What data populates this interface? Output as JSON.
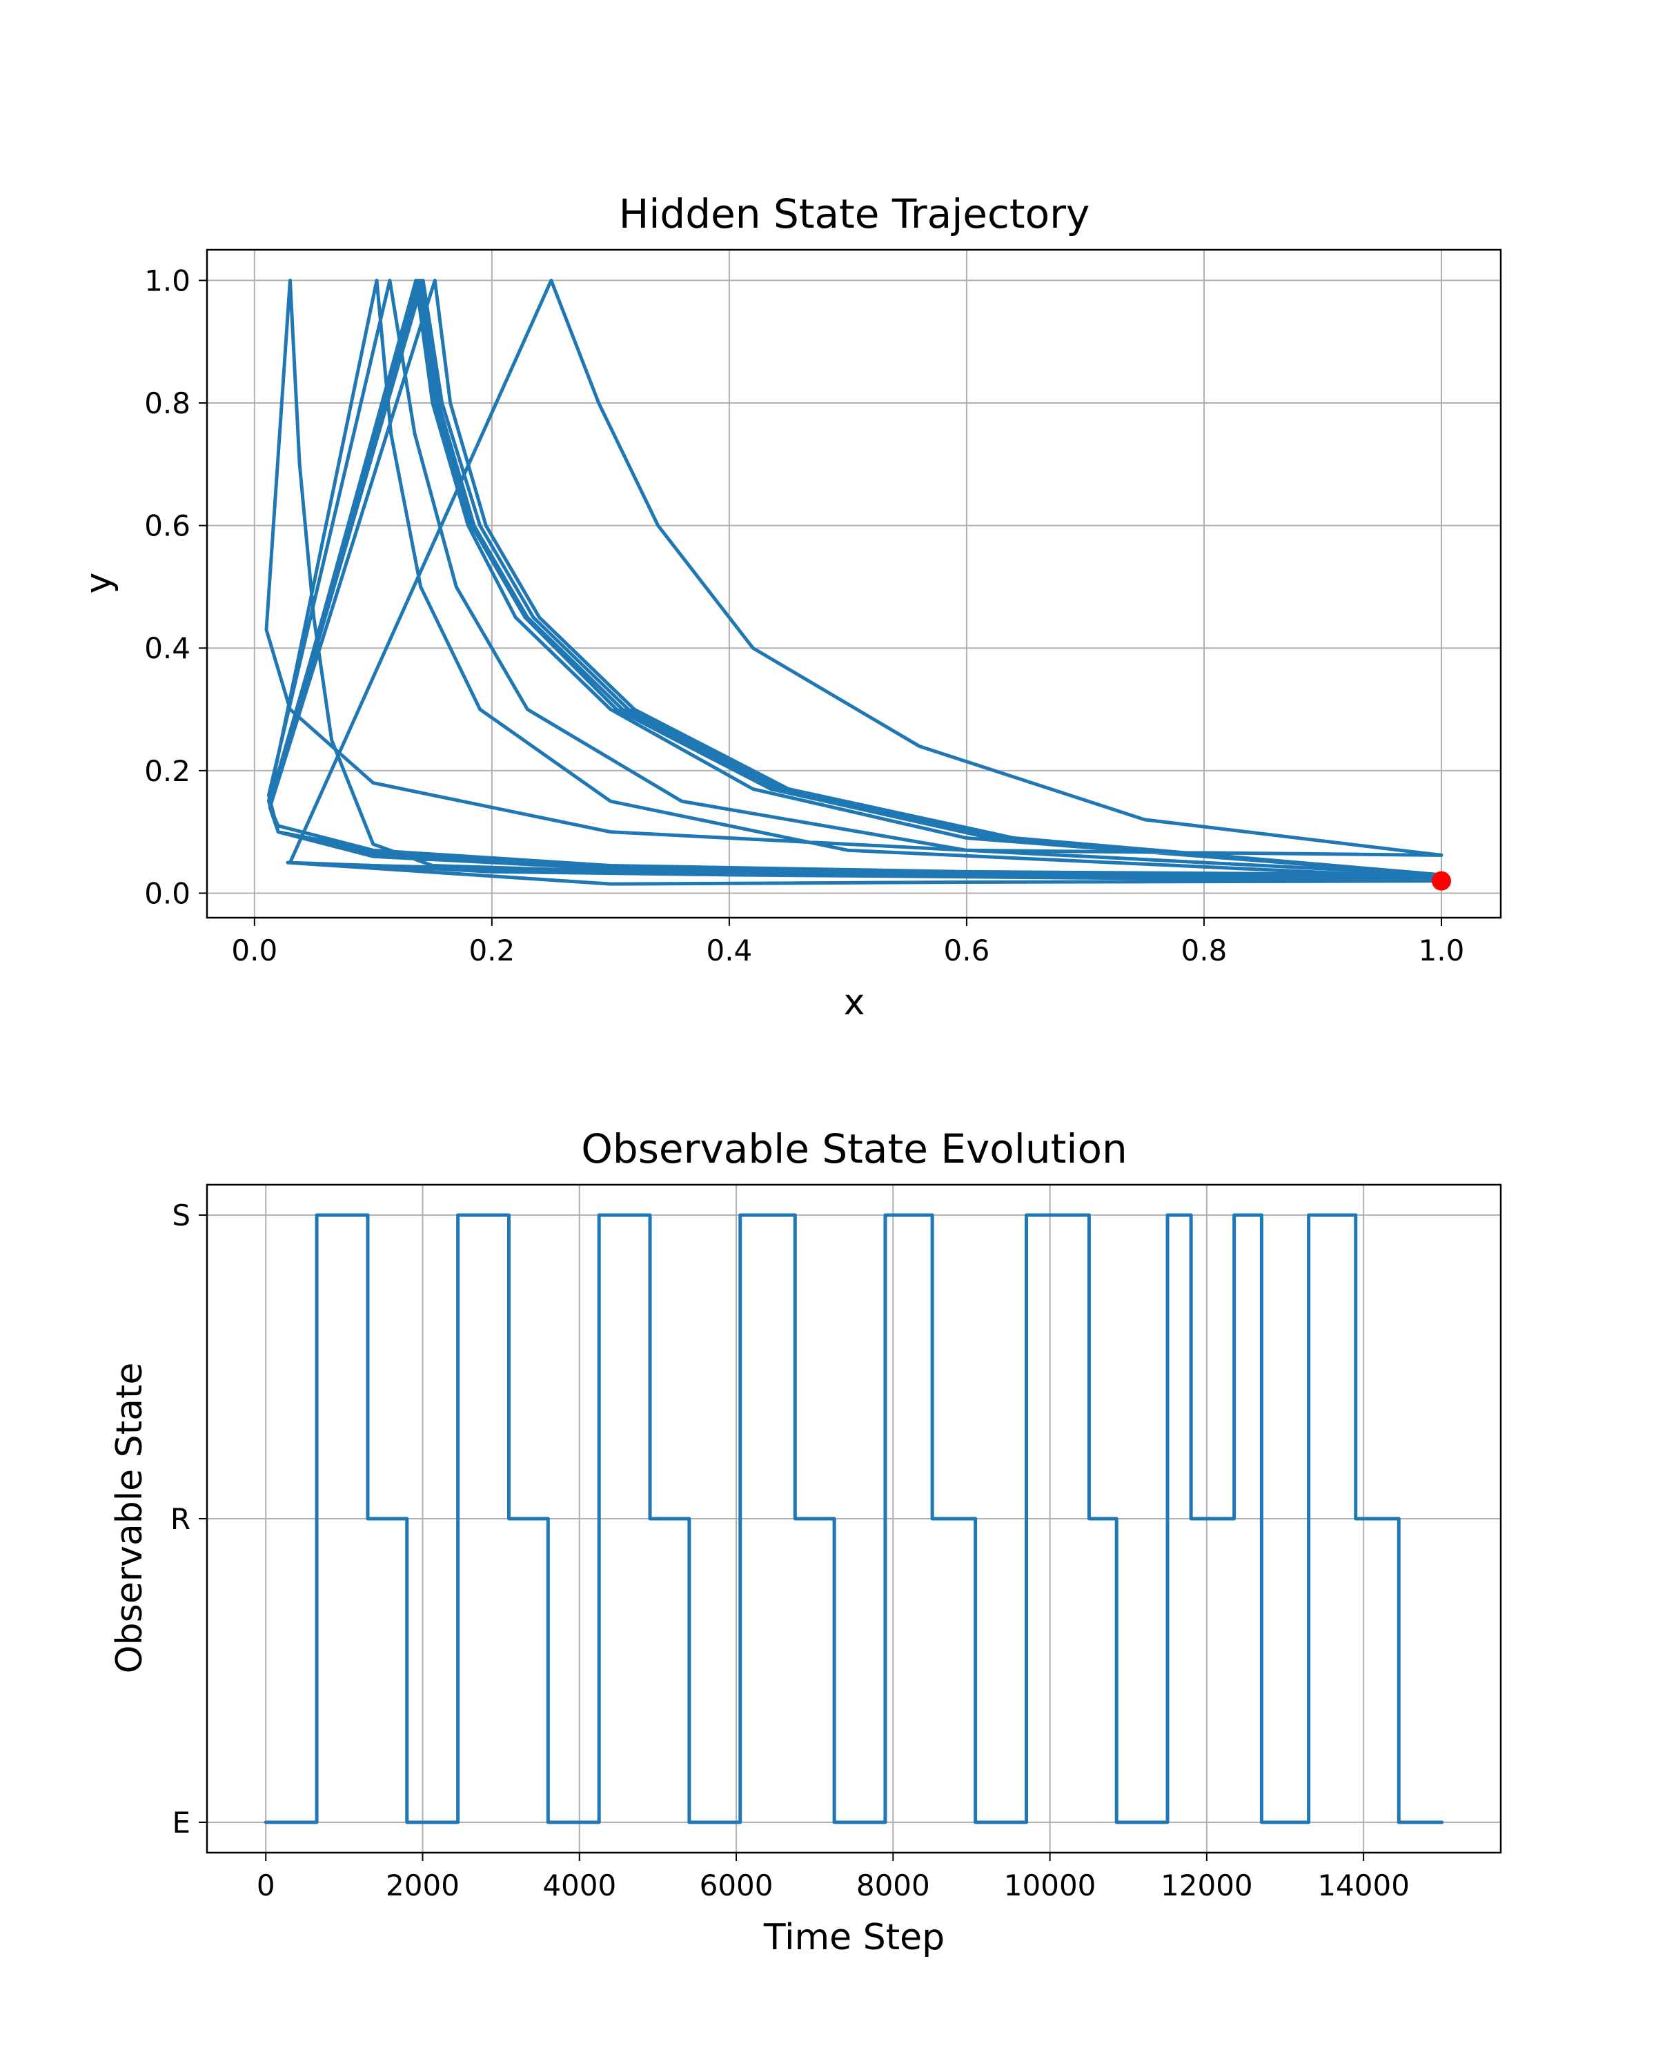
{
  "colors": {
    "series": "#1f77b4",
    "marker": "#ff0000",
    "grid": "#b0b0b0"
  },
  "chart_data": [
    {
      "type": "line",
      "title": "Hidden State Trajectory",
      "xlabel": "x",
      "ylabel": "y",
      "xlim": [
        -0.04,
        1.05
      ],
      "ylim": [
        -0.04,
        1.05
      ],
      "xticks": [
        0.0,
        0.2,
        0.4,
        0.6,
        0.8,
        1.0
      ],
      "xtick_labels": [
        "0.0",
        "0.2",
        "0.4",
        "0.6",
        "0.8",
        "1.0"
      ],
      "yticks": [
        0.0,
        0.2,
        0.4,
        0.6,
        0.8,
        1.0
      ],
      "ytick_labels": [
        "0.0",
        "0.2",
        "0.4",
        "0.6",
        "0.8",
        "1.0"
      ],
      "grid": true,
      "series": [
        {
          "points": [
            [
              1.0,
              0.02
            ],
            [
              0.7,
              0.025
            ],
            [
              0.4,
              0.03
            ],
            [
              0.2,
              0.035
            ],
            [
              0.1,
              0.045
            ],
            [
              0.03,
              0.05
            ],
            [
              0.25,
              1.0
            ],
            [
              0.29,
              0.8
            ],
            [
              0.34,
              0.6
            ],
            [
              0.42,
              0.4
            ],
            [
              0.56,
              0.24
            ],
            [
              0.75,
              0.12
            ],
            [
              1.0,
              0.062
            ],
            [
              0.6,
              0.07
            ],
            [
              0.3,
              0.1
            ],
            [
              0.1,
              0.18
            ],
            [
              0.03,
              0.3
            ],
            [
              0.01,
              0.43
            ],
            [
              0.03,
              1.0
            ],
            [
              0.038,
              0.7
            ],
            [
              0.05,
              0.45
            ],
            [
              0.065,
              0.25
            ],
            [
              0.1,
              0.08
            ],
            [
              0.15,
              0.045
            ],
            [
              0.4,
              0.03
            ],
            [
              0.7,
              0.025
            ],
            [
              1.0,
              0.02
            ],
            [
              0.6,
              0.03
            ],
            [
              0.3,
              0.04
            ],
            [
              0.1,
              0.06
            ],
            [
              0.02,
              0.1
            ],
            [
              0.012,
              0.15
            ],
            [
              0.103,
              1.0
            ],
            [
              0.115,
              0.75
            ],
            [
              0.14,
              0.5
            ],
            [
              0.19,
              0.3
            ],
            [
              0.3,
              0.15
            ],
            [
              0.5,
              0.07
            ],
            [
              1.0,
              0.025
            ],
            [
              0.6,
              0.03
            ],
            [
              0.3,
              0.045
            ],
            [
              0.1,
              0.07
            ],
            [
              0.02,
              0.1
            ],
            [
              0.012,
              0.16
            ],
            [
              0.114,
              1.0
            ],
            [
              0.135,
              0.75
            ],
            [
              0.17,
              0.5
            ],
            [
              0.23,
              0.3
            ],
            [
              0.36,
              0.15
            ],
            [
              0.6,
              0.07
            ],
            [
              1.0,
              0.03
            ],
            [
              0.6,
              0.035
            ],
            [
              0.3,
              0.045
            ],
            [
              0.1,
              0.07
            ],
            [
              0.02,
              0.11
            ],
            [
              0.013,
              0.14
            ],
            [
              0.136,
              1.0
            ],
            [
              0.15,
              0.8
            ],
            [
              0.18,
              0.6
            ],
            [
              0.22,
              0.45
            ],
            [
              0.3,
              0.3
            ],
            [
              0.42,
              0.17
            ],
            [
              0.6,
              0.09
            ],
            [
              1.0,
              0.03
            ],
            [
              0.6,
              0.035
            ],
            [
              0.3,
              0.045
            ],
            [
              0.1,
              0.07
            ],
            [
              0.02,
              0.1
            ],
            [
              0.013,
              0.15
            ],
            [
              0.14,
              1.0
            ],
            [
              0.155,
              0.8
            ],
            [
              0.185,
              0.6
            ],
            [
              0.23,
              0.45
            ],
            [
              0.31,
              0.3
            ],
            [
              0.44,
              0.17
            ],
            [
              0.62,
              0.09
            ],
            [
              1.0,
              0.03
            ],
            [
              0.6,
              0.035
            ],
            [
              0.3,
              0.045
            ],
            [
              0.1,
              0.065
            ],
            [
              0.02,
              0.1
            ],
            [
              0.013,
              0.14
            ],
            [
              0.152,
              1.0
            ],
            [
              0.165,
              0.8
            ],
            [
              0.195,
              0.6
            ],
            [
              0.24,
              0.45
            ],
            [
              0.32,
              0.3
            ],
            [
              0.45,
              0.17
            ],
            [
              0.64,
              0.09
            ],
            [
              1.0,
              0.03
            ],
            [
              0.6,
              0.035
            ],
            [
              0.3,
              0.045
            ],
            [
              0.1,
              0.065
            ],
            [
              0.02,
              0.1
            ],
            [
              0.013,
              0.14
            ],
            [
              0.142,
              1.0
            ],
            [
              0.158,
              0.8
            ],
            [
              0.19,
              0.6
            ],
            [
              0.235,
              0.45
            ],
            [
              0.315,
              0.3
            ],
            [
              0.445,
              0.17
            ],
            [
              0.63,
              0.09
            ],
            [
              1.0,
              0.03
            ],
            [
              0.6,
              0.035
            ],
            [
              0.3,
              0.045
            ],
            [
              0.1,
              0.065
            ],
            [
              0.02,
              0.1
            ],
            [
              0.013,
              0.14
            ],
            [
              0.138,
              1.0
            ],
            [
              0.153,
              0.8
            ],
            [
              0.183,
              0.6
            ],
            [
              0.228,
              0.45
            ],
            [
              0.305,
              0.3
            ],
            [
              0.435,
              0.17
            ],
            [
              0.62,
              0.09
            ],
            [
              1.0,
              0.03
            ],
            [
              0.6,
              0.03
            ],
            [
              0.3,
              0.035
            ],
            [
              0.1,
              0.045
            ],
            [
              0.028,
              0.05
            ],
            [
              0.3,
              0.015
            ],
            [
              0.6,
              0.018
            ],
            [
              1.0,
              0.02
            ]
          ]
        }
      ],
      "markers": [
        {
          "x": 1.0,
          "y": 0.02
        }
      ]
    },
    {
      "type": "line",
      "step": true,
      "title": "Observable State Evolution",
      "xlabel": "Time Step",
      "ylabel": "Observable State",
      "xlim": [
        -750,
        15750
      ],
      "ylim": [
        -0.1,
        2.1
      ],
      "xticks": [
        0,
        2000,
        4000,
        6000,
        8000,
        10000,
        12000,
        14000
      ],
      "xtick_labels": [
        "0",
        "2000",
        "4000",
        "6000",
        "8000",
        "10000",
        "12000",
        "14000"
      ],
      "yticks": [
        0,
        1,
        2
      ],
      "ytick_labels": [
        "E",
        "R",
        "S"
      ],
      "grid": true,
      "series": [
        {
          "steps": [
            [
              0,
              0
            ],
            [
              650,
              2
            ],
            [
              1300,
              1
            ],
            [
              1800,
              0
            ],
            [
              2450,
              2
            ],
            [
              3100,
              1
            ],
            [
              3600,
              0
            ],
            [
              4250,
              2
            ],
            [
              4900,
              1
            ],
            [
              5400,
              0
            ],
            [
              6050,
              2
            ],
            [
              6750,
              1
            ],
            [
              7250,
              0
            ],
            [
              7900,
              2
            ],
            [
              8500,
              1
            ],
            [
              9050,
              0
            ],
            [
              9700,
              2
            ],
            [
              10500,
              1
            ],
            [
              10850,
              0
            ],
            [
              11500,
              2
            ],
            [
              11800,
              1
            ],
            [
              12350,
              2
            ],
            [
              12700,
              0
            ],
            [
              13300,
              2
            ],
            [
              13900,
              1
            ],
            [
              14450,
              0
            ],
            [
              15000,
              0
            ]
          ]
        }
      ]
    }
  ]
}
